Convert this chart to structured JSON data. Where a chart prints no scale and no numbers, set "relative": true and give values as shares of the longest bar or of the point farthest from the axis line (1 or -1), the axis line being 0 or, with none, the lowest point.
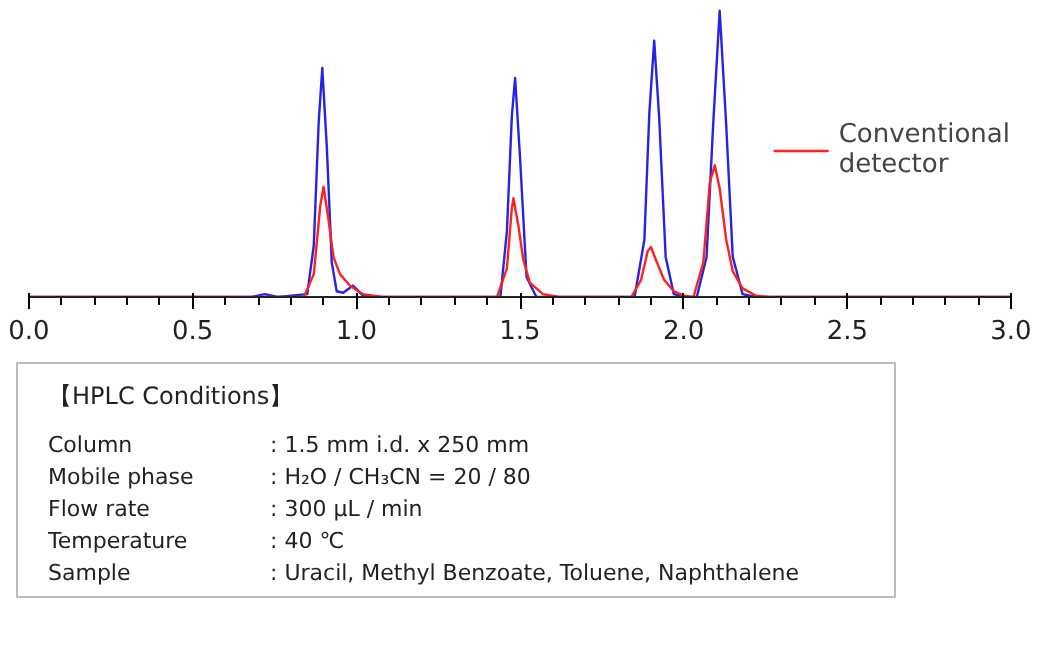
{
  "chart_data": {
    "type": "line",
    "relative": true,
    "legend": "right",
    "xlim": [
      0,
      3
    ],
    "xticks": [
      {
        "value": 0,
        "label": "0.0"
      },
      {
        "value": 0.5,
        "label": "0.5"
      },
      {
        "value": 1,
        "label": "1.0"
      },
      {
        "value": 1.5,
        "label": "1.5"
      },
      {
        "value": 2,
        "label": "2.0"
      },
      {
        "value": 2.5,
        "label": "2.5"
      },
      {
        "value": 3,
        "label": "3.0"
      }
    ],
    "series": [
      {
        "color": "#2424e6",
        "x": [
          0,
          0.68,
          0.72,
          0.76,
          0.85,
          0.87,
          0.885,
          0.896,
          0.91,
          0.925,
          0.94,
          0.96,
          0.99,
          1.02,
          1.06,
          1.44,
          1.46,
          1.475,
          1.485,
          1.5,
          1.52,
          1.55,
          1.85,
          1.88,
          1.895,
          1.91,
          1.925,
          1.945,
          1.97,
          2.0,
          2.04,
          2.07,
          2.09,
          2.11,
          2.13,
          2.15,
          2.18,
          2.22,
          3.0
        ],
        "values": [
          0,
          0,
          0.01,
          0,
          0.01,
          0.18,
          0.61,
          0.8,
          0.52,
          0.12,
          0.02,
          0.015,
          0.04,
          0.005,
          0,
          0,
          0.23,
          0.63,
          0.765,
          0.49,
          0.07,
          0,
          0,
          0.2,
          0.64,
          0.895,
          0.63,
          0.14,
          0.01,
          0,
          0,
          0.14,
          0.6,
          1.0,
          0.6,
          0.14,
          0.01,
          0,
          0
        ]
      },
      {
        "name": "Conventional detector",
        "color": "#ff2020",
        "x": [
          0,
          0.84,
          0.87,
          0.89,
          0.9,
          0.915,
          0.93,
          0.95,
          0.98,
          1.02,
          1.08,
          1.43,
          1.46,
          1.475,
          1.48,
          1.495,
          1.51,
          1.53,
          1.57,
          1.62,
          1.84,
          1.87,
          1.89,
          1.9,
          1.915,
          1.94,
          1.97,
          2.0,
          2.03,
          2.06,
          2.08,
          2.095,
          2.11,
          2.13,
          2.15,
          2.18,
          2.22,
          2.26,
          3.0
        ],
        "values": [
          0,
          0,
          0.08,
          0.32,
          0.385,
          0.27,
          0.14,
          0.08,
          0.04,
          0.01,
          0,
          0,
          0.1,
          0.31,
          0.345,
          0.25,
          0.13,
          0.05,
          0.01,
          0,
          0,
          0.06,
          0.16,
          0.175,
          0.13,
          0.06,
          0.02,
          0.005,
          0,
          0.12,
          0.4,
          0.46,
          0.38,
          0.2,
          0.09,
          0.03,
          0.005,
          0,
          0
        ]
      }
    ],
    "annotations": [
      "【HPLC Conditions】",
      "Column : 1.5 mm i.d. x 250 mm",
      "Mobile phase : H₂O / CH₃CN = 20 / 80",
      "Flow rate : 300 μL / min",
      "Temperature : 40 ℃",
      "Sample : Uracil, Methyl Benzoate, Toluene, Naphthalene"
    ]
  }
}
